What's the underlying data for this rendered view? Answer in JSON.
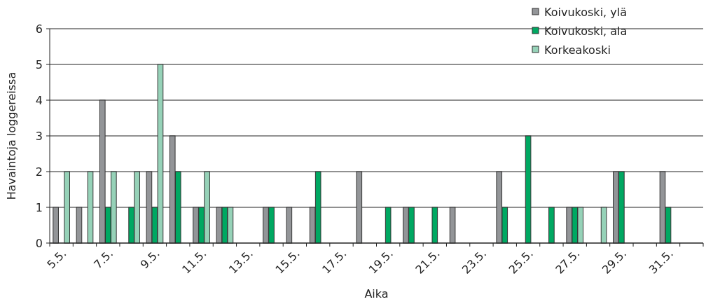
{
  "chart_data": {
    "type": "bar",
    "xlabel": "Aika",
    "ylabel": "Havaintoja loggereissa",
    "categories": [
      "5.5.",
      null,
      "7.5.",
      null,
      "9.5.",
      null,
      "11.5.",
      null,
      "13.5.",
      null,
      "15.5.",
      null,
      "17.5.",
      null,
      "19.5.",
      null,
      "21.5.",
      null,
      "23.5.",
      null,
      "25.5.",
      null,
      "27.5.",
      null,
      "29.5.",
      null,
      "31.5.",
      null
    ],
    "series": [
      {
        "name": "Koivukoski, ylä",
        "color": "#939598",
        "values": [
          1,
          1,
          4,
          0,
          2,
          3,
          1,
          1,
          0,
          1,
          1,
          1,
          0,
          2,
          0,
          1,
          0,
          1,
          0,
          2,
          0,
          0,
          1,
          0,
          2,
          0,
          2,
          0
        ]
      },
      {
        "name": "Koivukoski, ala",
        "color": "#00a862",
        "values": [
          0,
          0,
          1,
          1,
          1,
          2,
          1,
          1,
          0,
          1,
          0,
          2,
          0,
          0,
          1,
          1,
          1,
          0,
          0,
          1,
          3,
          1,
          1,
          0,
          2,
          0,
          1,
          0
        ]
      },
      {
        "name": "Korkeakoski",
        "color": "#96d2b8",
        "values": [
          2,
          2,
          2,
          2,
          5,
          0,
          2,
          1,
          0,
          0,
          0,
          0,
          0,
          0,
          0,
          0,
          0,
          0,
          0,
          0,
          0,
          0,
          1,
          1,
          0,
          0,
          0,
          0
        ]
      }
    ],
    "ylim": [
      0,
      6
    ],
    "yticks": [
      0,
      1,
      2,
      3,
      4,
      5,
      6
    ],
    "grid": "y",
    "legend": "top right"
  }
}
